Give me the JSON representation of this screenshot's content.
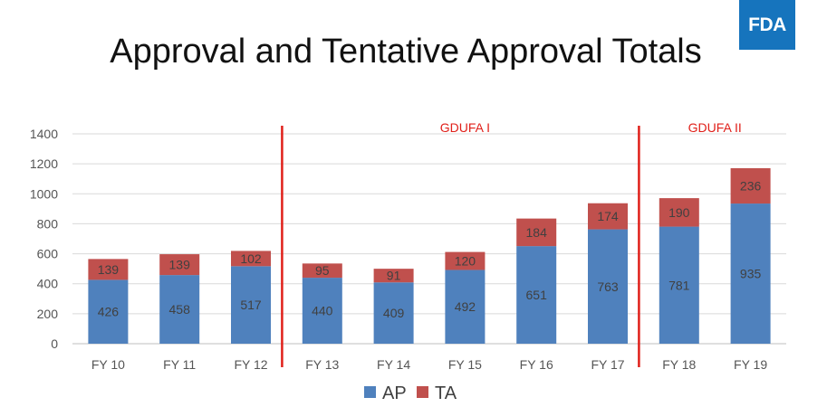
{
  "logo_text": "FDA",
  "title": "Approval and Tentative Approval Totals",
  "chart_data": {
    "type": "bar",
    "stacked": true,
    "categories": [
      "FY 10",
      "FY 11",
      "FY 12",
      "FY 13",
      "FY 14",
      "FY 15",
      "FY 16",
      "FY 17",
      "FY 18",
      "FY 19"
    ],
    "series": [
      {
        "name": "AP",
        "color": "#4f81bd",
        "values": [
          426,
          458,
          517,
          440,
          409,
          492,
          651,
          763,
          781,
          935
        ]
      },
      {
        "name": "TA",
        "color": "#c0504d",
        "values": [
          139,
          139,
          102,
          95,
          91,
          120,
          184,
          174,
          190,
          236
        ]
      }
    ],
    "ylim": [
      0,
      1400
    ],
    "yticks": [
      0,
      200,
      400,
      600,
      800,
      1000,
      1200,
      1400
    ],
    "grid": true,
    "legend": "bottom",
    "periods": [
      {
        "label": "GDUFA I",
        "starts_before": "FY 13",
        "line_color": "#e0201a"
      },
      {
        "label": "GDUFA II",
        "starts_before": "FY 18",
        "line_color": "#e0201a"
      }
    ]
  }
}
